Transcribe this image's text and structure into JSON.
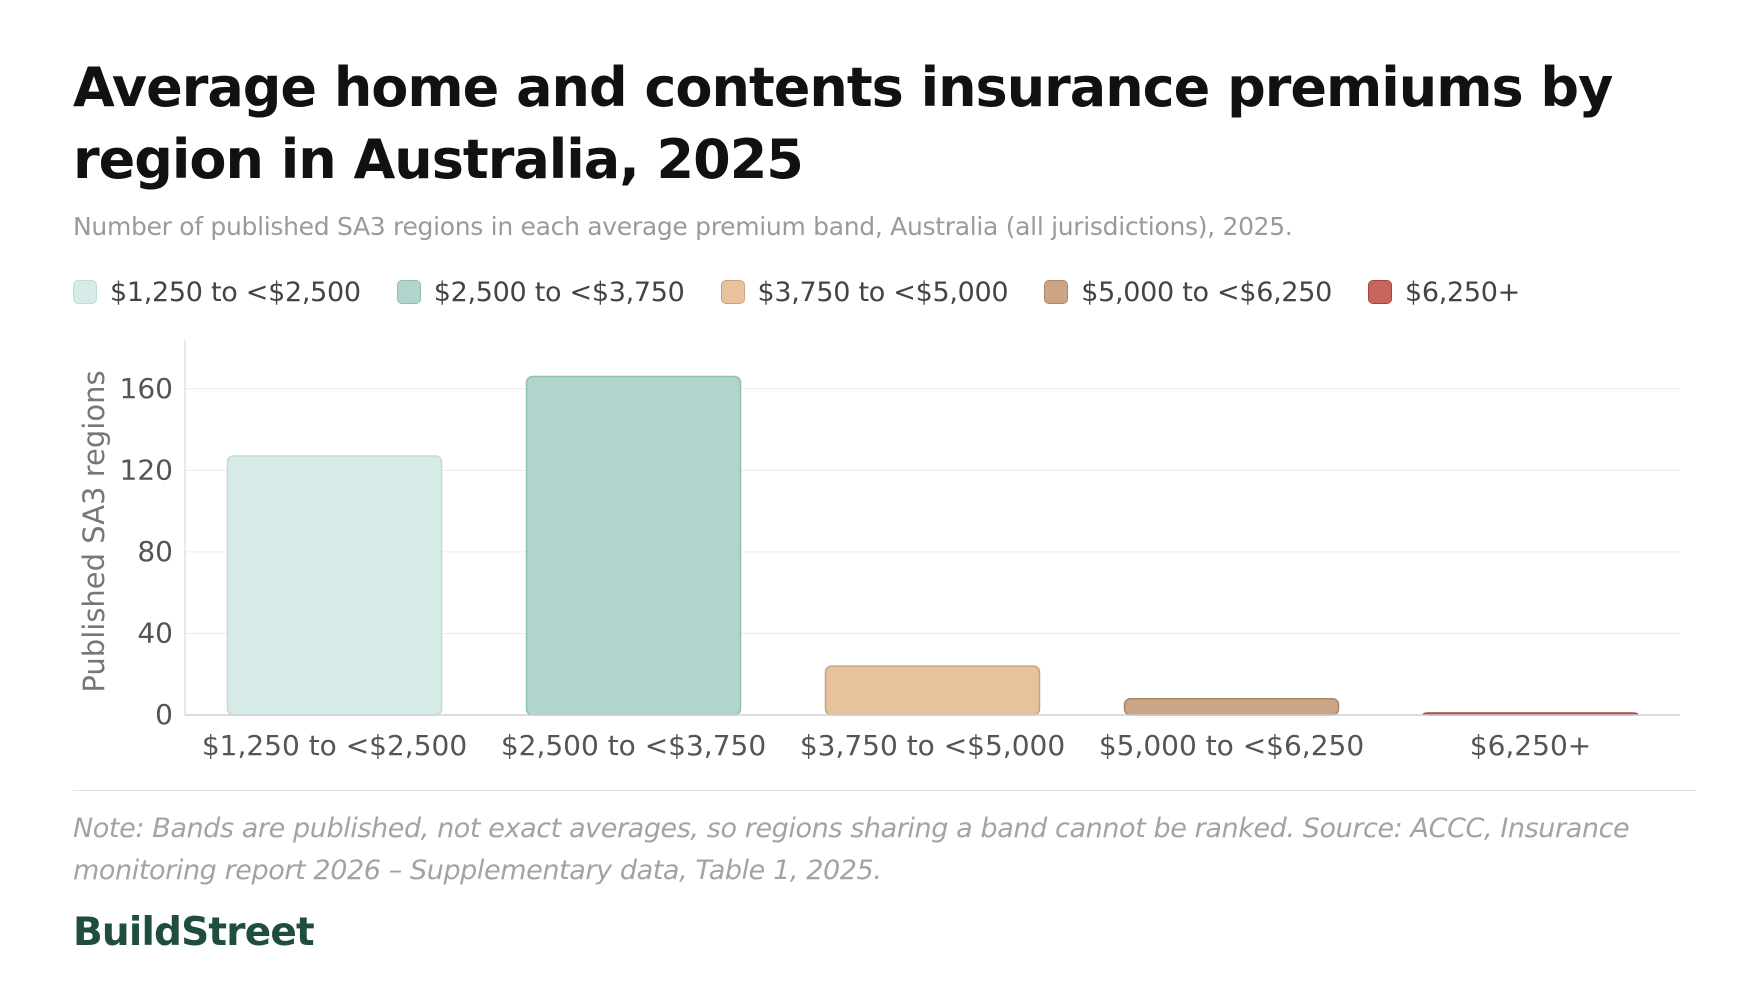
{
  "header": {
    "title": "Average home and contents insurance premiums by region in Australia, 2025",
    "subtitle": "Number of published SA3 regions in each average premium band, Australia (all jurisdictions), 2025."
  },
  "legend": {
    "items": [
      {
        "label": "$1,250 to <$2,500",
        "color": "#d6ebe7",
        "border": "#bcdcd6"
      },
      {
        "label": "$2,500 to <$3,750",
        "color": "#b1d5cd",
        "border": "#8ebfb4"
      },
      {
        "label": "$3,750 to <$5,000",
        "color": "#e6c29d",
        "border": "#cda27a"
      },
      {
        "label": "$5,000 to <$6,250",
        "color": "#cba585",
        "border": "#ad8665"
      },
      {
        "label": "$6,250+",
        "color": "#c9655c",
        "border": "#a8443c"
      }
    ]
  },
  "chart_data": {
    "type": "bar",
    "categories": [
      "$1,250 to <$2,500",
      "$2,500 to <$3,750",
      "$3,750 to <$5,000",
      "$5,000 to <$6,250",
      "$6,250+"
    ],
    "values": [
      127,
      166,
      24,
      8,
      1
    ],
    "colors": [
      "#d6ebe7",
      "#b1d5cd",
      "#e6c29d",
      "#cba585",
      "#c9655c"
    ],
    "border_colors": [
      "#bcdcd6",
      "#8ebfb4",
      "#cda27a",
      "#ad8665",
      "#a8443c"
    ],
    "title": "Average home and contents insurance premiums by region in Australia, 2025",
    "subtitle": "Number of published SA3 regions in each average premium band, Australia (all jurisdictions), 2025.",
    "xlabel": "",
    "ylabel": "Published SA3 regions",
    "ylim": [
      0,
      180
    ],
    "yticks": [
      0,
      40,
      80,
      120,
      160
    ],
    "grid": true,
    "legend_position": "top"
  },
  "footer": {
    "note": "Note: Bands are published, not exact averages, so regions sharing a band cannot be ranked. Source: ACCC, Insurance monitoring report 2026 – Supplementary data, Table 1, 2025.",
    "brand": "BuildStreet"
  }
}
